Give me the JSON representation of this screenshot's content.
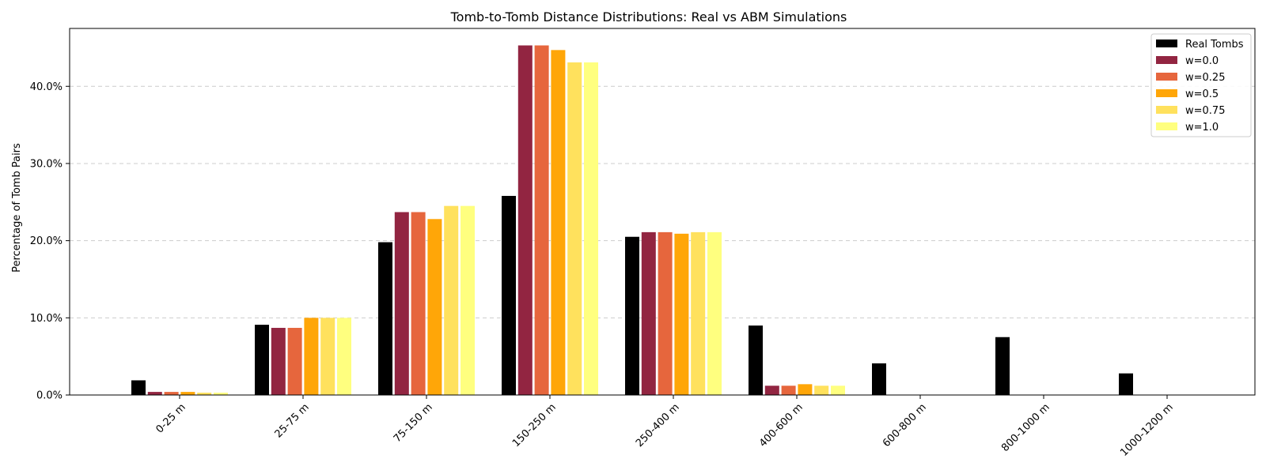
{
  "chart_data": {
    "type": "bar",
    "title": "Tomb-to-Tomb Distance Distributions: Real vs ABM Simulations",
    "xlabel": "",
    "ylabel": "Percentage of Tomb Pairs",
    "ylim": [
      0,
      47.5
    ],
    "yticks": [
      "0.0%",
      "10.0%",
      "20.0%",
      "30.0%",
      "40.0%"
    ],
    "grid": "y-dashed",
    "legend_position": "top-right",
    "categories": [
      "0-25 m",
      "25-75 m",
      "75-150 m",
      "150-250 m",
      "250-400 m",
      "400-600 m",
      "600-800 m",
      "800-1000 m",
      "1000-1200 m"
    ],
    "series": [
      {
        "name": "Real Tombs",
        "color": "#000000",
        "values": [
          1.9,
          9.1,
          19.8,
          25.8,
          20.5,
          9.0,
          4.1,
          7.5,
          2.8
        ]
      },
      {
        "name": "w=0.0",
        "color": "#922541",
        "values": [
          0.4,
          8.7,
          23.7,
          45.3,
          21.1,
          1.2,
          0.0,
          0.0,
          0.0
        ]
      },
      {
        "name": "w=0.25",
        "color": "#e6663d",
        "values": [
          0.4,
          8.7,
          23.7,
          45.3,
          21.1,
          1.2,
          0.0,
          0.0,
          0.0
        ]
      },
      {
        "name": "w=0.5",
        "color": "#ffa608",
        "values": [
          0.4,
          10.0,
          22.8,
          44.7,
          20.9,
          1.4,
          0.0,
          0.0,
          0.0
        ]
      },
      {
        "name": "w=0.75",
        "color": "#ffe15d",
        "values": [
          0.3,
          10.0,
          24.5,
          43.1,
          21.1,
          1.2,
          0.0,
          0.0,
          0.0
        ]
      },
      {
        "name": "w=1.0",
        "color": "#ffff7f",
        "values": [
          0.3,
          10.0,
          24.5,
          43.1,
          21.1,
          1.2,
          0.0,
          0.0,
          0.0
        ]
      }
    ]
  }
}
